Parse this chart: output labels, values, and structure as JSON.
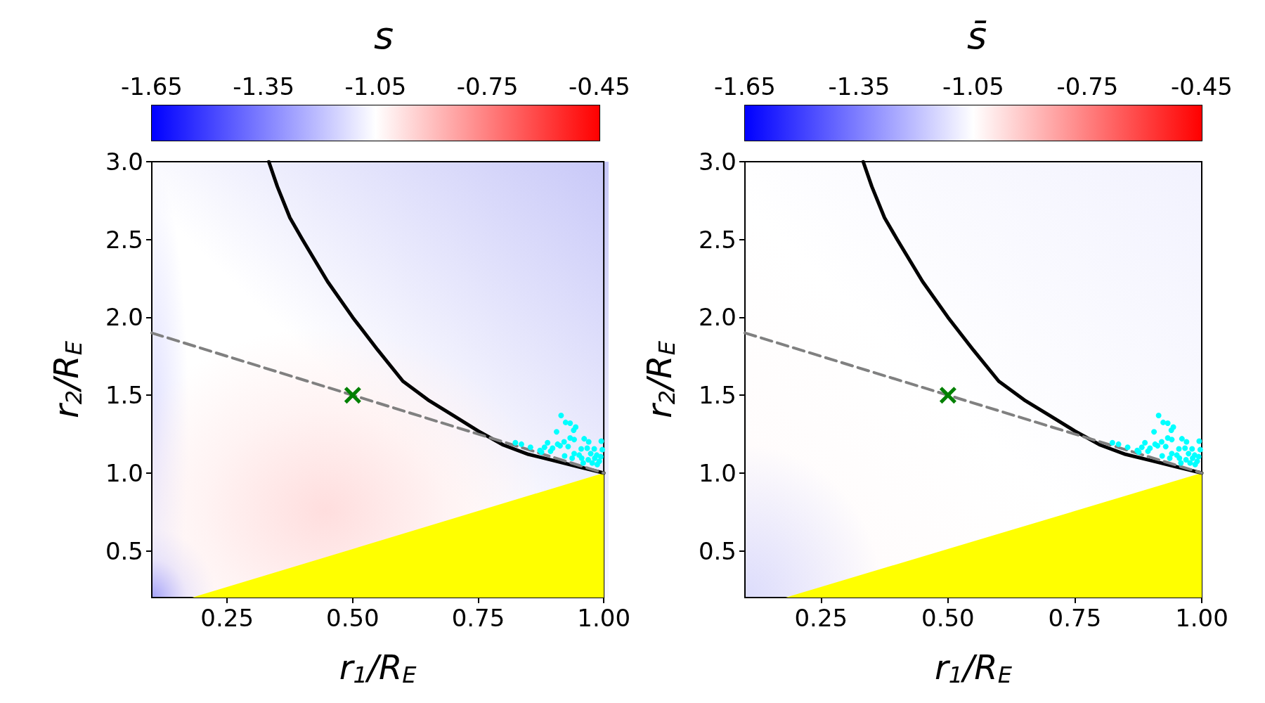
{
  "chart_data": [
    {
      "type": "scatter",
      "title": "s",
      "xlabel": "r$_{1}$/R$_{E}$",
      "ylabel": "r$_{2}$/R$_{E}$",
      "xlim": [
        0.1,
        1.0
      ],
      "xticks": [
        {
          "value": 0.25,
          "label": "0.25"
        },
        {
          "value": 0.5,
          "label": "0.50"
        },
        {
          "value": 0.75,
          "label": "0.75"
        },
        {
          "value": 1.0,
          "label": "1.00"
        }
      ],
      "ylim": [
        0.2,
        3.0
      ],
      "yticks": [
        {
          "value": 0.5,
          "label": "0.5"
        },
        {
          "value": 1.0,
          "label": "1.0"
        },
        {
          "value": 1.5,
          "label": "1.5"
        },
        {
          "value": 2.0,
          "label": "2.0"
        },
        {
          "value": 2.5,
          "label": "2.5"
        },
        {
          "value": 3.0,
          "label": "3.0"
        }
      ],
      "clim": [
        -1.65,
        -0.45
      ],
      "cticks": [
        -1.65,
        -1.35,
        -1.05,
        -0.75,
        -0.45
      ],
      "series": [
        {
          "type": "area",
          "x": [
            0.18,
            1.0
          ],
          "values": [
            0.2,
            1.0
          ],
          "color": "#ffff00"
        },
        {
          "type": "line",
          "x": [
            0.333,
            0.35,
            0.375,
            0.4,
            0.45,
            0.5,
            0.55,
            0.6,
            0.65,
            0.7,
            0.75,
            0.8,
            0.85,
            0.9,
            0.95,
            1.0
          ],
          "values": [
            3.0,
            2.84,
            2.64,
            2.5,
            2.23,
            2.0,
            1.79,
            1.59,
            1.47,
            1.37,
            1.27,
            1.18,
            1.12,
            1.08,
            1.04,
            1.0
          ],
          "color": "#000000",
          "marker": "none",
          "line_style": "solid"
        },
        {
          "type": "line",
          "x": [
            0.1,
            1.0
          ],
          "values": [
            1.9,
            1.0
          ],
          "color": "#808080",
          "marker": "none",
          "line_style": "dashed"
        },
        {
          "type": "scatter",
          "x": [
            0.915,
            0.924,
            0.933,
            0.944,
            0.94,
            0.906,
            0.933,
            0.941,
            0.961,
            0.97,
            0.995,
            0.888,
            0.908,
            0.921,
            0.929,
            0.882,
            0.898,
            0.913,
            0.955,
            0.967,
            0.981,
            0.997,
            0.876,
            0.894,
            0.941,
            0.951,
            0.974,
            0.986,
            0.922,
            0.937,
            0.956,
            0.969,
            0.982,
            0.991,
            0.994,
            0.824,
            0.836,
            0.854,
            0.873,
            0.987,
            0.977,
            0.959
          ],
          "values": [
            1.37,
            1.325,
            1.32,
            1.295,
            1.275,
            1.265,
            1.225,
            1.215,
            1.22,
            1.2,
            1.205,
            1.195,
            1.185,
            1.2,
            1.17,
            1.165,
            1.16,
            1.175,
            1.155,
            1.16,
            1.155,
            1.15,
            1.135,
            1.14,
            1.125,
            1.115,
            1.125,
            1.115,
            1.11,
            1.095,
            1.095,
            1.085,
            1.095,
            1.075,
            1.105,
            1.195,
            1.185,
            1.165,
            1.145,
            1.055,
            1.065,
            1.065
          ],
          "color": "#00ffff",
          "marker": "circle"
        },
        {
          "type": "scatter",
          "x": [
            0.5
          ],
          "values": [
            1.5
          ],
          "color": "#008000",
          "marker": "cross"
        }
      ]
    },
    {
      "type": "scatter",
      "title": "s̄",
      "xlabel": "r$_{1}$/R$_{E}$",
      "ylabel": "r$_{2}$/R$_{E}$",
      "xlim": [
        0.1,
        1.0
      ],
      "xticks": [
        {
          "value": 0.25,
          "label": "0.25"
        },
        {
          "value": 0.5,
          "label": "0.50"
        },
        {
          "value": 0.75,
          "label": "0.75"
        },
        {
          "value": 1.0,
          "label": "1.00"
        }
      ],
      "ylim": [
        0.2,
        3.0
      ],
      "yticks": [
        {
          "value": 0.5,
          "label": "0.5"
        },
        {
          "value": 1.0,
          "label": "1.0"
        },
        {
          "value": 1.5,
          "label": "1.5"
        },
        {
          "value": 2.0,
          "label": "2.0"
        },
        {
          "value": 2.5,
          "label": "2.5"
        },
        {
          "value": 3.0,
          "label": "3.0"
        }
      ],
      "clim": [
        -1.65,
        -0.45
      ],
      "cticks": [
        -1.65,
        -1.35,
        -1.05,
        -0.75,
        -0.45
      ],
      "series": [
        {
          "type": "area",
          "x": [
            0.18,
            1.0
          ],
          "values": [
            0.2,
            1.0
          ],
          "color": "#ffff00"
        },
        {
          "type": "line",
          "x": [
            0.333,
            0.35,
            0.375,
            0.4,
            0.45,
            0.5,
            0.55,
            0.6,
            0.65,
            0.7,
            0.75,
            0.8,
            0.85,
            0.9,
            0.95,
            1.0
          ],
          "values": [
            3.0,
            2.84,
            2.64,
            2.5,
            2.23,
            2.0,
            1.79,
            1.59,
            1.47,
            1.37,
            1.27,
            1.18,
            1.12,
            1.08,
            1.04,
            1.0
          ],
          "color": "#000000",
          "marker": "none",
          "line_style": "solid"
        },
        {
          "type": "line",
          "x": [
            0.1,
            1.0
          ],
          "values": [
            1.9,
            1.0
          ],
          "color": "#808080",
          "marker": "none",
          "line_style": "dashed"
        },
        {
          "type": "scatter",
          "x": [
            0.915,
            0.924,
            0.933,
            0.944,
            0.94,
            0.906,
            0.933,
            0.941,
            0.961,
            0.97,
            0.995,
            0.888,
            0.908,
            0.921,
            0.929,
            0.882,
            0.898,
            0.913,
            0.955,
            0.967,
            0.981,
            0.997,
            0.876,
            0.894,
            0.941,
            0.951,
            0.974,
            0.986,
            0.922,
            0.937,
            0.956,
            0.969,
            0.982,
            0.991,
            0.994,
            0.824,
            0.836,
            0.854,
            0.873,
            0.987,
            0.977,
            0.959
          ],
          "values": [
            1.37,
            1.325,
            1.32,
            1.295,
            1.275,
            1.265,
            1.225,
            1.215,
            1.22,
            1.2,
            1.205,
            1.195,
            1.185,
            1.2,
            1.17,
            1.165,
            1.16,
            1.175,
            1.155,
            1.16,
            1.155,
            1.15,
            1.135,
            1.14,
            1.125,
            1.115,
            1.125,
            1.115,
            1.11,
            1.095,
            1.095,
            1.085,
            1.095,
            1.075,
            1.105,
            1.195,
            1.185,
            1.165,
            1.145,
            1.055,
            1.065,
            1.065
          ],
          "color": "#00ffff",
          "marker": "circle"
        },
        {
          "type": "scatter",
          "x": [
            0.5
          ],
          "values": [
            1.5
          ],
          "color": "#008000",
          "marker": "cross"
        }
      ]
    }
  ]
}
